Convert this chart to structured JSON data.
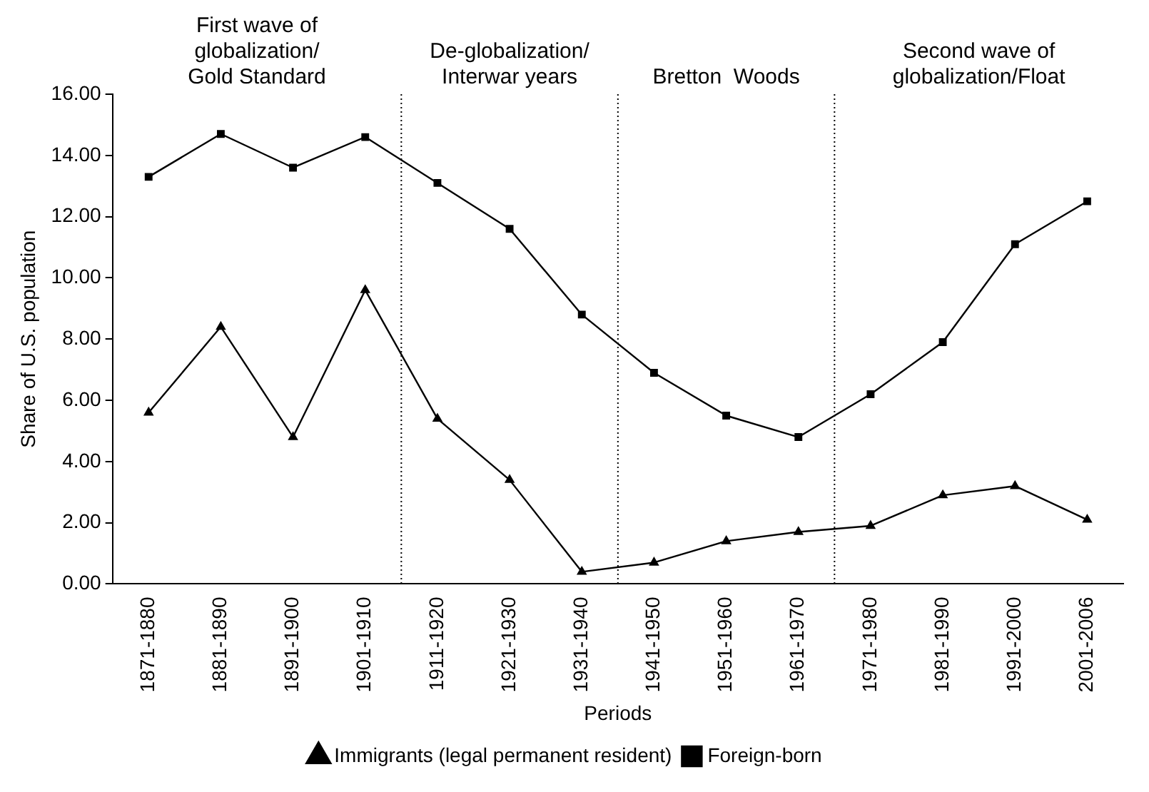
{
  "chart_data": {
    "type": "line",
    "xlabel": "Periods",
    "ylabel": "Share of U.S. population",
    "categories": [
      "1871-1880",
      "1881-1890",
      "1891-1900",
      "1901-1910",
      "1911-1920",
      "1921-1930",
      "1931-1940",
      "1941-1950",
      "1951-1960",
      "1961-1970",
      "1971-1980",
      "1981-1990",
      "1991-2000",
      "2001-2006"
    ],
    "series": [
      {
        "name": "Immigrants (legal permanent resident)",
        "color": "#000000",
        "marker": "triangle",
        "values": [
          5.6,
          8.4,
          4.8,
          9.6,
          5.4,
          3.4,
          0.4,
          0.7,
          1.4,
          1.7,
          1.9,
          2.9,
          3.2,
          2.1
        ]
      },
      {
        "name": "Foreign-born",
        "color": "#000000",
        "marker": "square",
        "values": [
          13.3,
          14.7,
          13.6,
          14.6,
          13.1,
          11.6,
          8.8,
          6.9,
          5.5,
          4.8,
          6.2,
          7.9,
          11.1,
          12.5
        ]
      }
    ],
    "ylim": [
      0,
      16
    ],
    "yticks": [
      {
        "value": 0,
        "label": "0.00"
      },
      {
        "value": 2,
        "label": "2.00"
      },
      {
        "value": 4,
        "label": "4.00"
      },
      {
        "value": 6,
        "label": "6.00"
      },
      {
        "value": 8,
        "label": "8.00"
      },
      {
        "value": 10,
        "label": "10.00"
      },
      {
        "value": 12,
        "label": "12.00"
      },
      {
        "value": 14,
        "label": "14.00"
      },
      {
        "value": 16,
        "label": "16.00"
      }
    ],
    "annotations": [
      "First wave of\nglobalization/\nGold Standard",
      "De-globalization/\nInterwar years",
      "Bretton  Woods",
      "Second wave of\nglobalization/Float"
    ],
    "grid": false,
    "legend": "bottom",
    "line_style": "solid"
  }
}
